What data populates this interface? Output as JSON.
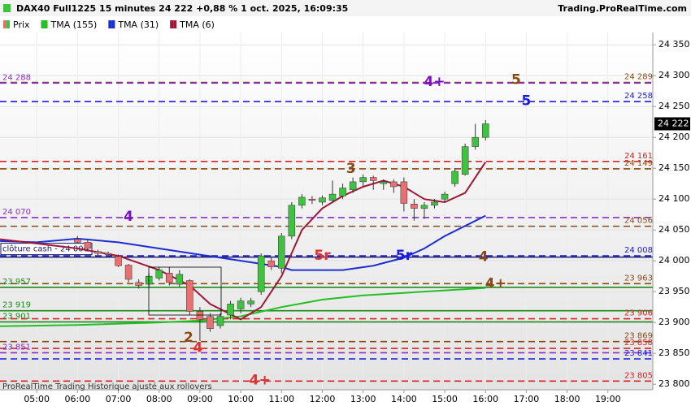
{
  "chart_data": {
    "type": "candlestick",
    "title": "DAX40 Full1225 15 minutes 24 222 +0,88 % 1 oct. 2025, 16:09:35",
    "source": "Trading.ProRealTime.com",
    "footer": "ProRealTime Trading  Historique ajusté aux rollovers",
    "xlim": [
      4.1,
      20.1
    ],
    "xticks": [
      {
        "value": 5,
        "label": "05:00"
      },
      {
        "value": 6,
        "label": "06:00"
      },
      {
        "value": 7,
        "label": "07:00"
      },
      {
        "value": 8,
        "label": "08:00"
      },
      {
        "value": 9,
        "label": "09:00"
      },
      {
        "value": 10,
        "label": "10:00"
      },
      {
        "value": 11,
        "label": "11:00"
      },
      {
        "value": 12,
        "label": "12:00"
      },
      {
        "value": 13,
        "label": "13:00"
      },
      {
        "value": 14,
        "label": "14:00"
      },
      {
        "value": 15,
        "label": "15:00"
      },
      {
        "value": 16,
        "label": "16:00"
      },
      {
        "value": 17,
        "label": "17:00"
      },
      {
        "value": 18,
        "label": "18:00"
      },
      {
        "value": 19,
        "label": "19:00"
      }
    ],
    "ylim": [
      23791,
      24370
    ],
    "yticks": [
      {
        "value": 23800,
        "label": "23 800"
      },
      {
        "value": 23850,
        "label": "23 850"
      },
      {
        "value": 23900,
        "label": "23 900"
      },
      {
        "value": 23950,
        "label": "23 950"
      },
      {
        "value": 24000,
        "label": "24 000"
      },
      {
        "value": 24050,
        "label": "24 050"
      },
      {
        "value": 24100,
        "label": "24 100"
      },
      {
        "value": 24150,
        "label": "24 150"
      },
      {
        "value": 24200,
        "label": "24 200"
      },
      {
        "value": 24250,
        "label": "24 250"
      },
      {
        "value": 24300,
        "label": "24 300"
      },
      {
        "value": 24350,
        "label": "24 350"
      }
    ],
    "grid": true,
    "price": {
      "name": "Prix",
      "up_color": "#3fc23f",
      "down_color": "#e87070",
      "x": [
        6,
        6.25,
        6.5,
        6.75,
        7,
        7.25,
        7.5,
        7.75,
        8,
        8.25,
        8.5,
        8.75,
        9,
        9.25,
        9.5,
        9.75,
        10,
        10.25,
        10.5,
        10.75,
        11,
        11.25,
        11.5,
        11.75,
        12,
        12.25,
        12.5,
        12.75,
        13,
        13.25,
        13.5,
        13.75,
        14,
        14.25,
        14.5,
        14.75,
        15,
        15.25,
        15.5,
        15.75,
        16
      ],
      "open": [
        24035,
        24030,
        24015,
        24012,
        24007,
        23993,
        23965,
        23962,
        23972,
        23980,
        23962,
        23968,
        23918,
        23910,
        23895,
        23912,
        23922,
        23930,
        23950,
        24000,
        23988,
        24040,
        24090,
        24100,
        24095,
        24098,
        24105,
        24115,
        24128,
        24135,
        24125,
        24128,
        24128,
        24092,
        24085,
        24090,
        24100,
        24125,
        24140,
        24185,
        24200
      ],
      "high": [
        24040,
        24035,
        24018,
        24015,
        24010,
        23995,
        23970,
        23980,
        23990,
        23990,
        23985,
        23970,
        23925,
        23915,
        23915,
        23935,
        23940,
        23940,
        24012,
        24005,
        24045,
        24095,
        24108,
        24105,
        24106,
        24130,
        24125,
        24135,
        24140,
        24138,
        24132,
        24132,
        24135,
        24100,
        24095,
        24100,
        24112,
        24150,
        24190,
        24222,
        24228
      ],
      "low": [
        24028,
        24015,
        24008,
        24005,
        23990,
        23965,
        23955,
        23958,
        23968,
        23960,
        23958,
        23912,
        23870,
        23885,
        23890,
        23905,
        23915,
        23925,
        23945,
        23985,
        23980,
        24035,
        24085,
        24092,
        24090,
        24095,
        24100,
        24110,
        24120,
        24115,
        24115,
        24110,
        24080,
        24065,
        24068,
        24085,
        24095,
        24120,
        24138,
        24180,
        24195
      ],
      "close": [
        24030,
        24020,
        24012,
        24010,
        23992,
        23970,
        23960,
        23975,
        23985,
        23965,
        23978,
        23918,
        23905,
        23890,
        23910,
        23930,
        23935,
        23935,
        24008,
        23990,
        24040,
        24090,
        24103,
        24098,
        24102,
        24108,
        24118,
        24128,
        24135,
        24130,
        24128,
        24120,
        24093,
        24085,
        24090,
        24095,
        24108,
        24145,
        24185,
        24200,
        24222
      ]
    },
    "series": [
      {
        "name": "TMA (155)",
        "color": "#22c022",
        "x": [
          4.1,
          6,
          8,
          9,
          10,
          11,
          12,
          13,
          14,
          15,
          16
        ],
        "values": [
          23894,
          23896,
          23900,
          23903,
          23910,
          23925,
          23937,
          23944,
          23948,
          23952,
          23956
        ]
      },
      {
        "name": "TMA (31)",
        "color": "#1c2fd0",
        "x": [
          4.1,
          5,
          6,
          7,
          8,
          9,
          10,
          11,
          11.25,
          12.5,
          13.25,
          14,
          14.5,
          15,
          16
        ],
        "values": [
          24032,
          24030,
          24036,
          24030,
          24020,
          24010,
          24000,
          23990,
          23985,
          23985,
          23992,
          24005,
          24020,
          24040,
          24073
        ]
      },
      {
        "name": "TMA (6)",
        "color": "#a01838",
        "x": [
          4.1,
          5,
          6,
          7,
          8,
          8.75,
          9.25,
          10,
          10.5,
          11,
          11.5,
          12,
          12.5,
          13,
          13.5,
          14,
          14.5,
          15,
          15.5,
          16
        ],
        "values": [
          24035,
          24028,
          24020,
          24008,
          23985,
          23960,
          23930,
          23905,
          23925,
          23975,
          24050,
          24085,
          24105,
          24120,
          24130,
          24120,
          24100,
          24095,
          24110,
          24160
        ]
      }
    ],
    "last_price": {
      "value": 24222,
      "label": "24 222"
    },
    "levels": [
      {
        "value": 24289,
        "label": "24 289",
        "side": "right",
        "color": "#8b4a14",
        "dashed": true
      },
      {
        "value": 24288,
        "label": "24 288",
        "side": "left",
        "color": "#8a2ad0",
        "dashed": true
      },
      {
        "value": 24258,
        "label": "24 258",
        "side": "right",
        "color": "#1a1ae6",
        "dashed": true
      },
      {
        "value": 24161,
        "label": "24 161",
        "side": "right",
        "color": "#e02020",
        "dashed": true
      },
      {
        "value": 24149,
        "label": "24 149",
        "side": "right",
        "color": "#8b4a14",
        "dashed": true
      },
      {
        "value": 24070,
        "label": "24 070",
        "side": "left",
        "color": "#8a2ad0",
        "dashed": true
      },
      {
        "value": 24056,
        "label": "24 056",
        "side": "right",
        "color": "#8b4a14",
        "dashed": true
      },
      {
        "value": 24008,
        "label": "24 008",
        "side": "right",
        "color": "#1a1ae6",
        "dashed": true
      },
      {
        "value": 24006,
        "label": "clôture cash -  24 006",
        "side": "left",
        "color": "#1a1a66",
        "dashed": false,
        "boxed": true
      },
      {
        "value": 23963,
        "label": "23 963",
        "side": "right",
        "color": "#8b4a14",
        "dashed": true
      },
      {
        "value": 23957,
        "label": "23 957",
        "side": "left",
        "color": "#1a8a1a",
        "dashed": false
      },
      {
        "value": 23919,
        "label": "23 919",
        "side": "left",
        "color": "#1a8a1a",
        "dashed": false
      },
      {
        "value": 23906,
        "label": "23 906",
        "side": "right",
        "color": "#e02020",
        "dashed": true
      },
      {
        "value": 23901,
        "label": "23 901",
        "side": "left",
        "color": "#1a8a1a",
        "dashed": false
      },
      {
        "value": 23869,
        "label": "23 869",
        "side": "right",
        "color": "#8b4a14",
        "dashed": true
      },
      {
        "value": 23858,
        "label": "23 858",
        "side": "right",
        "color": "#e02020",
        "dashed": true
      },
      {
        "value": 23851,
        "label": "23 851",
        "side": "left",
        "color": "#8a2ad0",
        "dashed": true
      },
      {
        "value": 23841,
        "label": "23 841",
        "side": "right",
        "color": "#1a1ae6",
        "dashed": true
      },
      {
        "value": 23805,
        "label": "23 805",
        "side": "right",
        "color": "#e02020",
        "dashed": true
      }
    ],
    "annotations": [
      {
        "text": "4+",
        "x": 14.75,
        "y": 24290,
        "color": "#7a10c0"
      },
      {
        "text": "5",
        "x": 16.75,
        "y": 24293,
        "color": "#8b4a14"
      },
      {
        "text": "5",
        "x": 17,
        "y": 24259,
        "color": "#1a1ae6"
      },
      {
        "text": "3",
        "x": 12.7,
        "y": 24149,
        "color": "#8b4a14"
      },
      {
        "text": "4",
        "x": 7.25,
        "y": 24071,
        "color": "#7a10c0"
      },
      {
        "text": "5r",
        "x": 12,
        "y": 24008,
        "color": "#e03030"
      },
      {
        "text": "5r",
        "x": 14,
        "y": 24008,
        "color": "#1a1ae6"
      },
      {
        "text": "4",
        "x": 15.95,
        "y": 24006,
        "color": "#8b4a14"
      },
      {
        "text": "4+",
        "x": 16.25,
        "y": 23963,
        "color": "#8b4a14"
      },
      {
        "text": "2",
        "x": 8.72,
        "y": 23875,
        "color": "#8b4a14"
      },
      {
        "text": "4",
        "x": 8.95,
        "y": 23859,
        "color": "#e03030"
      },
      {
        "text": "4+",
        "x": 10.47,
        "y": 23806,
        "color": "#e03030"
      }
    ]
  }
}
